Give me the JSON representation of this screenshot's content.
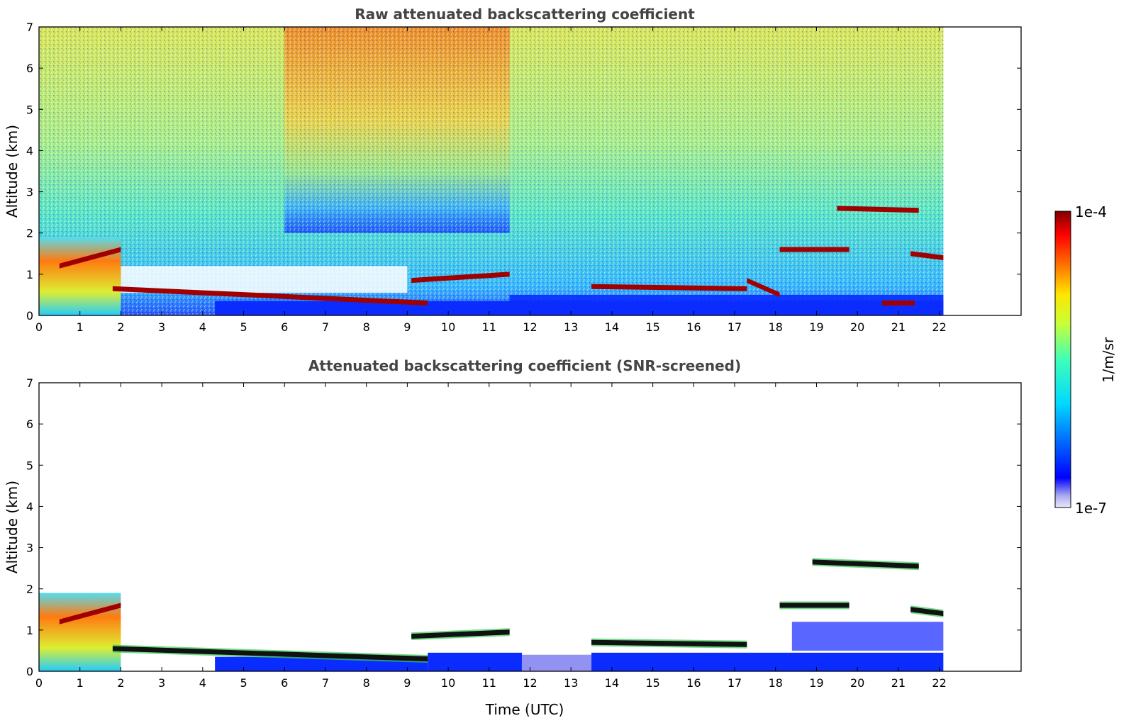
{
  "chart_data": [
    {
      "type": "heatmap",
      "title": "Raw attenuated backscattering coefficient",
      "xlabel": "",
      "ylabel": "Altitude (km)",
      "xlim": [
        0,
        24
      ],
      "ylim": [
        0,
        7
      ],
      "xticks": [
        "0",
        "1",
        "2",
        "3",
        "4",
        "5",
        "6",
        "7",
        "8",
        "9",
        "10",
        "11",
        "12",
        "13",
        "14",
        "15",
        "16",
        "17",
        "18",
        "19",
        "20",
        "21",
        "22"
      ],
      "yticks": [
        "0",
        "1",
        "2",
        "3",
        "4",
        "5",
        "6",
        "7"
      ],
      "data_end_time": 22.1,
      "scale": "log",
      "colormap": "jet",
      "layers": [
        {
          "kind": "boundary-layer",
          "x": [
            0,
            2
          ],
          "y": [
            0,
            1.9
          ],
          "level": "high"
        },
        {
          "kind": "cloud",
          "x": [
            0.5,
            2
          ],
          "y": [
            1.2,
            1.6
          ],
          "level": "very-high"
        },
        {
          "kind": "cloud",
          "x": [
            1.8,
            9.5
          ],
          "y": [
            0.65,
            0.3
          ],
          "level": "very-high"
        },
        {
          "kind": "cloud",
          "x": [
            9.1,
            11.5
          ],
          "y": [
            0.85,
            1.0
          ],
          "level": "very-high"
        },
        {
          "kind": "cloud",
          "x": [
            13.5,
            17.3
          ],
          "y": [
            0.7,
            0.65
          ],
          "level": "very-high"
        },
        {
          "kind": "cloud",
          "x": [
            17.3,
            18.1
          ],
          "y": [
            0.85,
            0.5
          ],
          "level": "very-high"
        },
        {
          "kind": "cloud",
          "x": [
            18.1,
            19.8
          ],
          "y": [
            1.6,
            1.6
          ],
          "level": "very-high"
        },
        {
          "kind": "cloud",
          "x": [
            19.5,
            21.5
          ],
          "y": [
            2.6,
            2.55
          ],
          "level": "very-high"
        },
        {
          "kind": "cloud",
          "x": [
            21.3,
            22.1
          ],
          "y": [
            1.5,
            1.4
          ],
          "level": "very-high"
        },
        {
          "kind": "cloud",
          "x": [
            20.6,
            21.4
          ],
          "y": [
            0.3,
            0.3
          ],
          "level": "very-high"
        }
      ]
    },
    {
      "type": "heatmap",
      "title": "Attenuated backscattering coefficient (SNR-screened)",
      "xlabel": "Time (UTC)",
      "ylabel": "Altitude (km)",
      "xlim": [
        0,
        24
      ],
      "ylim": [
        0,
        7
      ],
      "xticks": [
        "0",
        "1",
        "2",
        "3",
        "4",
        "5",
        "6",
        "7",
        "8",
        "9",
        "10",
        "11",
        "12",
        "13",
        "14",
        "15",
        "16",
        "17",
        "18",
        "19",
        "20",
        "21",
        "22"
      ],
      "yticks": [
        "0",
        "1",
        "2",
        "3",
        "4",
        "5",
        "6",
        "7"
      ],
      "data_end_time": 22.1,
      "scale": "log",
      "colormap": "jet",
      "layers": [
        {
          "kind": "boundary-layer",
          "x": [
            0,
            2
          ],
          "y": [
            0,
            1.9
          ],
          "level": "high"
        },
        {
          "kind": "cloud",
          "x": [
            0.5,
            2
          ],
          "y": [
            1.2,
            1.6
          ],
          "level": "very-high"
        },
        {
          "kind": "cloud",
          "x": [
            1.8,
            9.5
          ],
          "y": [
            0.55,
            0.3
          ],
          "level": "black"
        },
        {
          "kind": "cloud",
          "x": [
            9.1,
            11.5
          ],
          "y": [
            0.85,
            0.95
          ],
          "level": "black"
        },
        {
          "kind": "cloud",
          "x": [
            13.5,
            17.3
          ],
          "y": [
            0.7,
            0.65
          ],
          "level": "black"
        },
        {
          "kind": "cloud",
          "x": [
            18.1,
            19.8
          ],
          "y": [
            1.6,
            1.6
          ],
          "level": "black"
        },
        {
          "kind": "cloud",
          "x": [
            18.9,
            21.5
          ],
          "y": [
            2.65,
            2.55
          ],
          "level": "black"
        },
        {
          "kind": "cloud",
          "x": [
            21.3,
            22.1
          ],
          "y": [
            1.5,
            1.4
          ],
          "level": "black"
        }
      ]
    }
  ],
  "colorbar": {
    "max_label": "1e-4",
    "min_label": "1e-7",
    "unit_label": "1/m/sr"
  }
}
